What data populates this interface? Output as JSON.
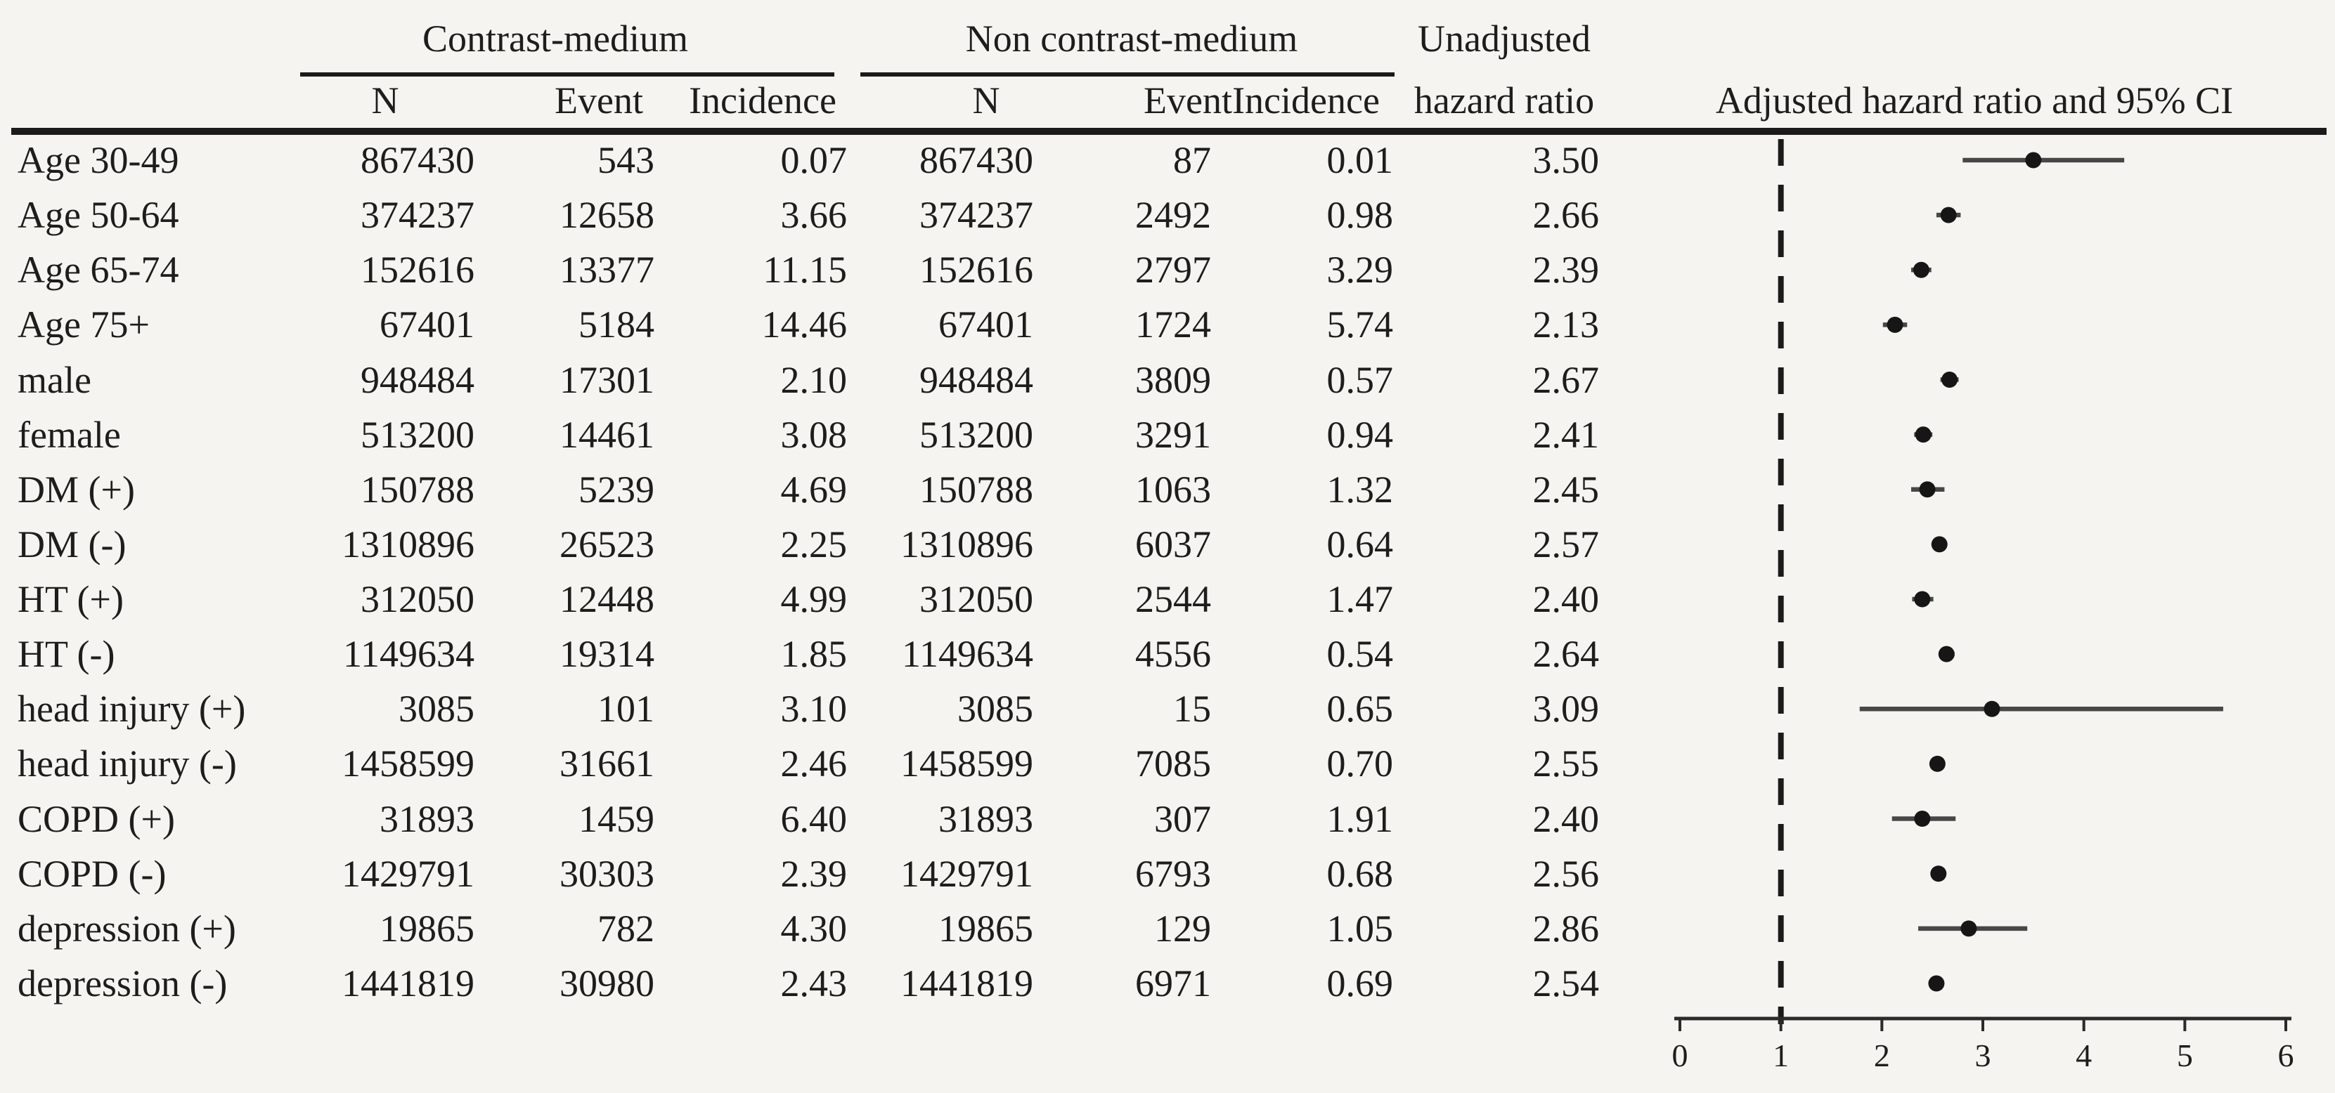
{
  "figure": {
    "background": "#f5f4f1",
    "text_color": "#1f1d1b",
    "rule_color": "#1b1b1b"
  },
  "header": {
    "group_contrast": "Contrast-medium",
    "group_non_contrast": "Non contrast-medium",
    "unadjusted_line1": "Unadjusted",
    "unadjusted_line2": "hazard ratio",
    "columns": {
      "n": "N",
      "event": "Event",
      "incidence": "Incidence"
    },
    "forest_title": "Adjusted hazard ratio and 95% CI"
  },
  "table": {
    "rows": [
      {
        "label": "Age 30-49",
        "cm_n": "867430",
        "cm_event": "543",
        "cm_inc": "0.07",
        "ncm_n": "867430",
        "ncm_event": "87",
        "ncm_inc": "0.01",
        "uhr": "3.50"
      },
      {
        "label": "Age 50-64",
        "cm_n": "374237",
        "cm_event": "12658",
        "cm_inc": "3.66",
        "ncm_n": "374237",
        "ncm_event": "2492",
        "ncm_inc": "0.98",
        "uhr": "2.66"
      },
      {
        "label": "Age 65-74",
        "cm_n": "152616",
        "cm_event": "13377",
        "cm_inc": "11.15",
        "ncm_n": "152616",
        "ncm_event": "2797",
        "ncm_inc": "3.29",
        "uhr": "2.39"
      },
      {
        "label": "Age 75+",
        "cm_n": "67401",
        "cm_event": "5184",
        "cm_inc": "14.46",
        "ncm_n": "67401",
        "ncm_event": "1724",
        "ncm_inc": "5.74",
        "uhr": "2.13"
      },
      {
        "label": "male",
        "cm_n": "948484",
        "cm_event": "17301",
        "cm_inc": "2.10",
        "ncm_n": "948484",
        "ncm_event": "3809",
        "ncm_inc": "0.57",
        "uhr": "2.67"
      },
      {
        "label": "female",
        "cm_n": "513200",
        "cm_event": "14461",
        "cm_inc": "3.08",
        "ncm_n": "513200",
        "ncm_event": "3291",
        "ncm_inc": "0.94",
        "uhr": "2.41"
      },
      {
        "label": "DM (+)",
        "cm_n": "150788",
        "cm_event": "5239",
        "cm_inc": "4.69",
        "ncm_n": "150788",
        "ncm_event": "1063",
        "ncm_inc": "1.32",
        "uhr": "2.45"
      },
      {
        "label": "DM (-)",
        "cm_n": "1310896",
        "cm_event": "26523",
        "cm_inc": "2.25",
        "ncm_n": "1310896",
        "ncm_event": "6037",
        "ncm_inc": "0.64",
        "uhr": "2.57"
      },
      {
        "label": "HT (+)",
        "cm_n": "312050",
        "cm_event": "12448",
        "cm_inc": "4.99",
        "ncm_n": "312050",
        "ncm_event": "2544",
        "ncm_inc": "1.47",
        "uhr": "2.40"
      },
      {
        "label": "HT (-)",
        "cm_n": "1149634",
        "cm_event": "19314",
        "cm_inc": "1.85",
        "ncm_n": "1149634",
        "ncm_event": "4556",
        "ncm_inc": "0.54",
        "uhr": "2.64"
      },
      {
        "label": "head injury (+)",
        "cm_n": "3085",
        "cm_event": "101",
        "cm_inc": "3.10",
        "ncm_n": "3085",
        "ncm_event": "15",
        "ncm_inc": "0.65",
        "uhr": "3.09"
      },
      {
        "label": "head injury (-)",
        "cm_n": "1458599",
        "cm_event": "31661",
        "cm_inc": "2.46",
        "ncm_n": "1458599",
        "ncm_event": "7085",
        "ncm_inc": "0.70",
        "uhr": "2.55"
      },
      {
        "label": "COPD (+)",
        "cm_n": "31893",
        "cm_event": "1459",
        "cm_inc": "6.40",
        "ncm_n": "31893",
        "ncm_event": "307",
        "ncm_inc": "1.91",
        "uhr": "2.40"
      },
      {
        "label": "COPD (-)",
        "cm_n": "1429791",
        "cm_event": "30303",
        "cm_inc": "2.39",
        "ncm_n": "1429791",
        "ncm_event": "6793",
        "ncm_inc": "0.68",
        "uhr": "2.56"
      },
      {
        "label": "depression (+)",
        "cm_n": "19865",
        "cm_event": "782",
        "cm_inc": "4.30",
        "ncm_n": "19865",
        "ncm_event": "129",
        "ncm_inc": "1.05",
        "uhr": "2.86"
      },
      {
        "label": "depression (-)",
        "cm_n": "1441819",
        "cm_event": "30980",
        "cm_inc": "2.43",
        "ncm_n": "1441819",
        "ncm_event": "6971",
        "ncm_inc": "0.69",
        "uhr": "2.54"
      }
    ]
  },
  "chart_data": {
    "type": "scatter",
    "title": "Adjusted hazard ratio and 95% CI",
    "orientation": "horizontal",
    "categories": [
      "Age 30-49",
      "Age 50-64",
      "Age 65-74",
      "Age 75+",
      "male",
      "female",
      "DM (+)",
      "DM (-)",
      "HT (+)",
      "HT (-)",
      "head injury (+)",
      "head injury (-)",
      "COPD (+)",
      "COPD (-)",
      "depression (+)",
      "depression (-)"
    ],
    "series": [
      {
        "name": "adjusted_hazard_ratio",
        "values": [
          3.5,
          2.66,
          2.39,
          2.13,
          2.67,
          2.41,
          2.45,
          2.57,
          2.4,
          2.64,
          3.09,
          2.55,
          2.4,
          2.56,
          2.86,
          2.54
        ]
      },
      {
        "name": "ci_lower",
        "values": [
          2.8,
          2.54,
          2.29,
          2.01,
          2.58,
          2.32,
          2.29,
          2.5,
          2.3,
          2.57,
          1.78,
          2.48,
          2.1,
          2.49,
          2.36,
          2.47
        ]
      },
      {
        "name": "ci_upper",
        "values": [
          4.4,
          2.78,
          2.49,
          2.25,
          2.76,
          2.5,
          2.62,
          2.64,
          2.51,
          2.72,
          5.38,
          2.62,
          2.73,
          2.63,
          3.44,
          2.61
        ]
      }
    ],
    "xlim": [
      0,
      6
    ],
    "x_ticks": [
      0,
      1,
      2,
      3,
      4,
      5,
      6
    ],
    "reference_line_x": 1,
    "grid": false,
    "legend": "none",
    "marker_color": "#161616",
    "ci_color": "#474747"
  }
}
